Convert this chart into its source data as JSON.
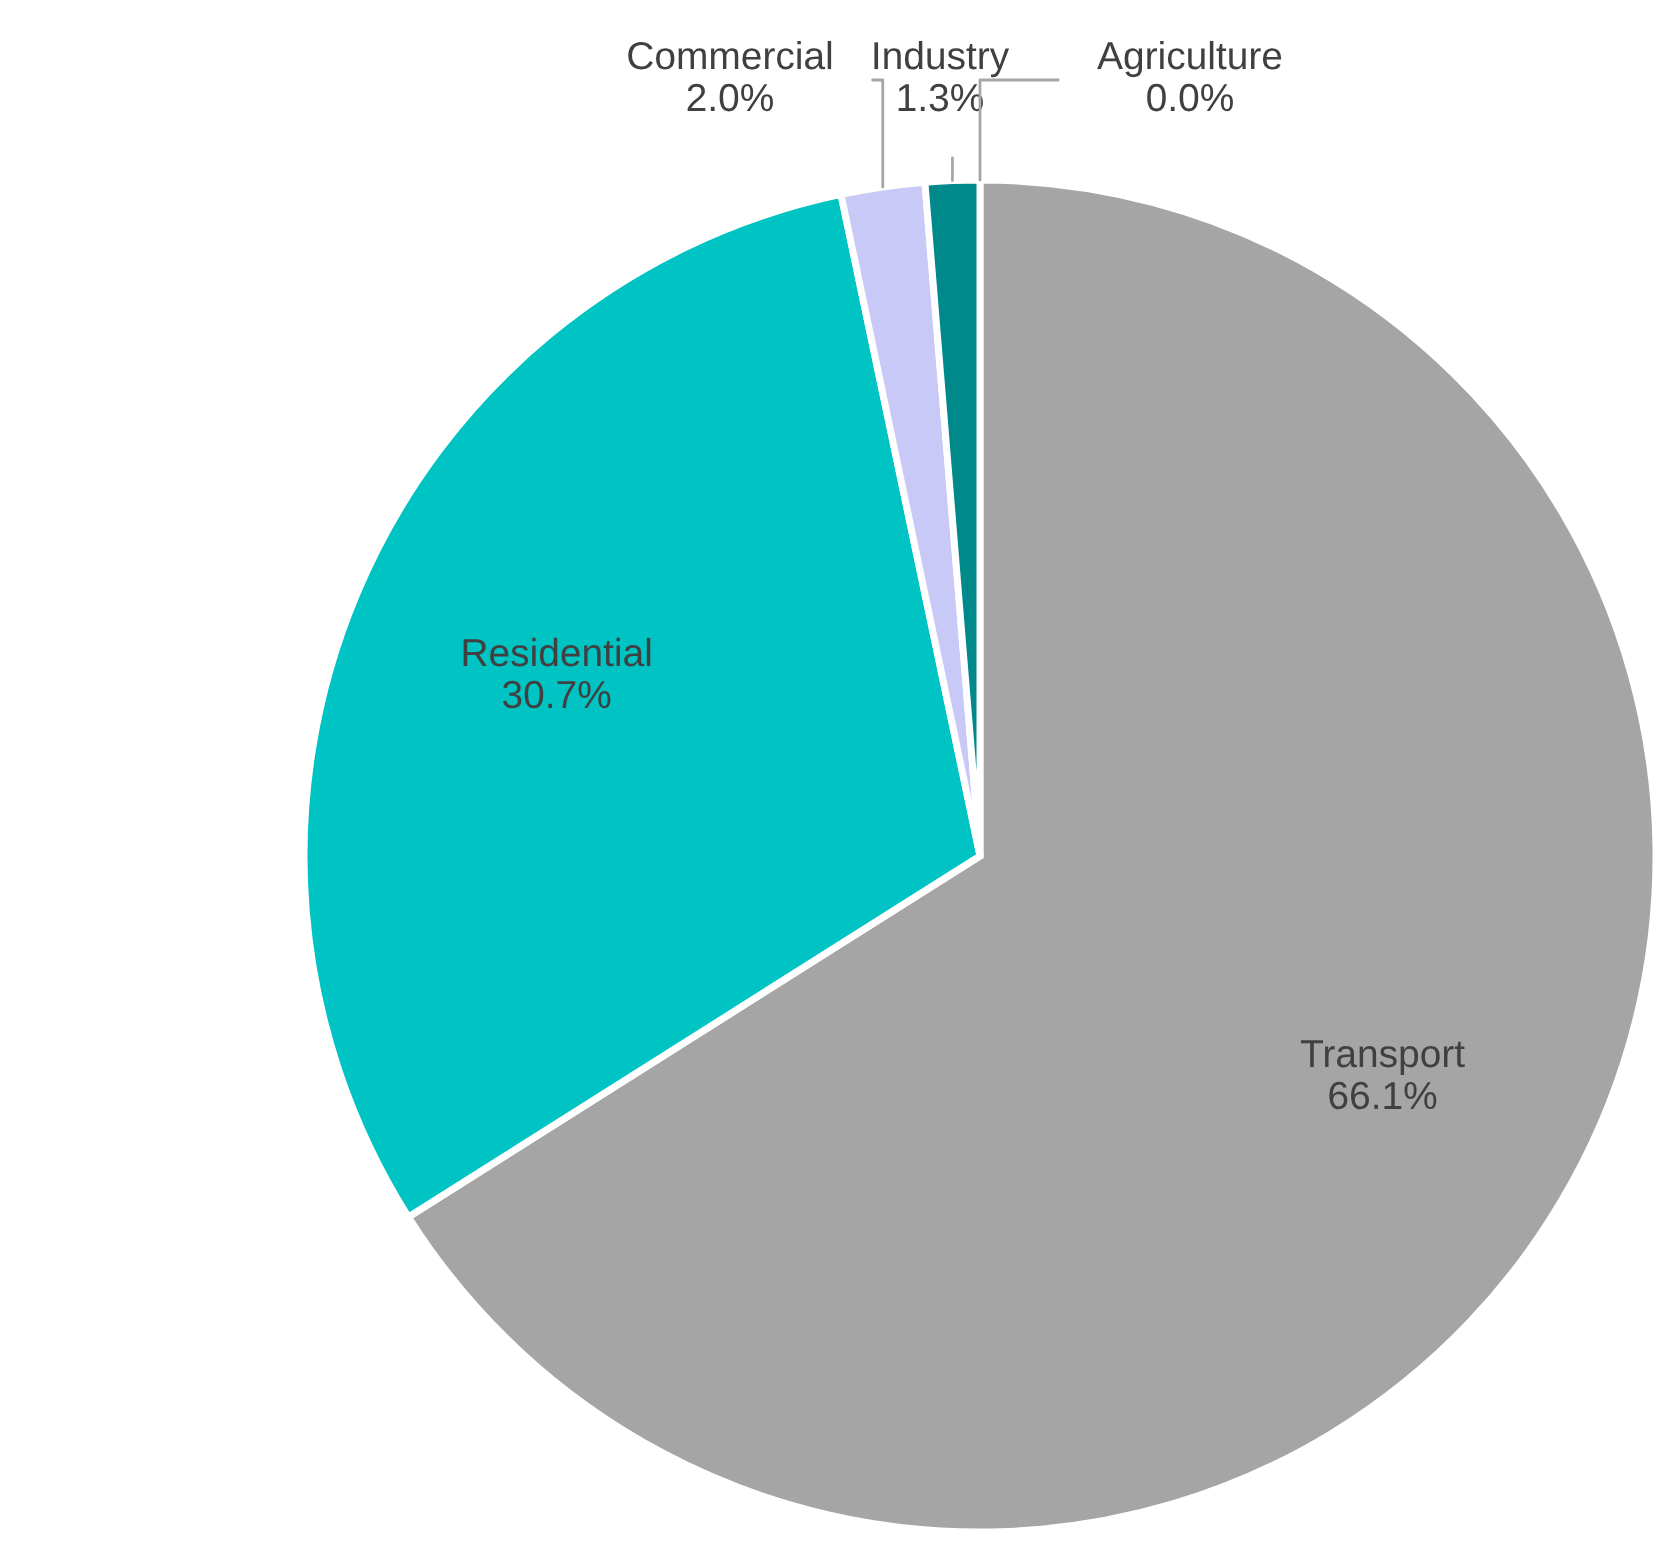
{
  "chart_data": {
    "type": "pie",
    "categories": [
      "Transport",
      "Residential",
      "Commercial",
      "Industry",
      "Agriculture"
    ],
    "values": [
      66.1,
      30.7,
      2.0,
      1.3,
      0.0
    ],
    "colors": [
      "#a5a5a5",
      "#00c4c4",
      "#c9c9f7",
      "#00898b",
      "#4a6fa5"
    ],
    "value_labels": [
      "66.1%",
      "30.7%",
      "2.0%",
      "1.3%",
      "0.0%"
    ],
    "legend": false
  }
}
